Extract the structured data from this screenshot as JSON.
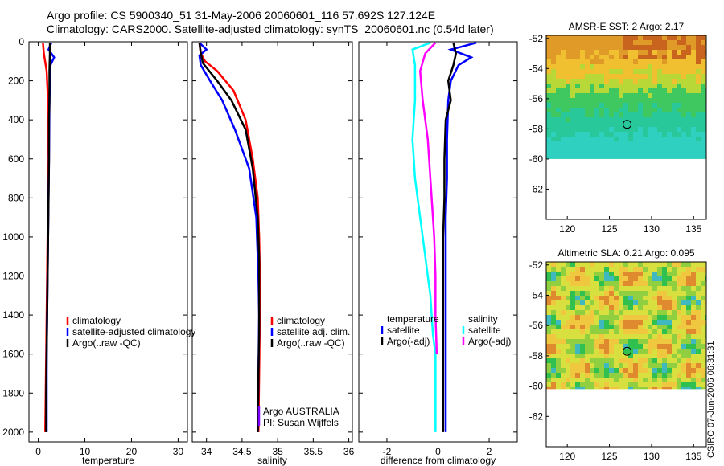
{
  "header": {
    "title_line1": "Argo profile: CS 5900340_51 31-May-2006 20060601_116 57.692S 127.124E",
    "title_line2": "Climatology: CARS2000. Satellite-adjusted climatology: synTS_20060601.nc (0.54d later)"
  },
  "stamp": "CSIRO 07-Jun-2006 06:31:31",
  "colors": {
    "red": "#ff0000",
    "blue": "#0000ff",
    "black": "#000000",
    "cyan": "#00ffff",
    "magenta": "#ff00ff"
  },
  "chart_data": [
    {
      "id": "temperature",
      "type": "line",
      "xlabel": "temperature",
      "ylabel": "",
      "xlim": [
        -2,
        32
      ],
      "ylim": [
        2050,
        0
      ],
      "xticks": [
        0,
        10,
        20,
        30
      ],
      "yticks": [
        0,
        200,
        400,
        600,
        800,
        1000,
        1200,
        1400,
        1600,
        1800,
        2000
      ],
      "legend": [
        "climatology",
        "satellite-adjusted climatology",
        "Argo(..raw -QC)"
      ],
      "series": [
        {
          "name": "climatology",
          "color": "red",
          "x": [
            1.0,
            1.2,
            1.8,
            2.0,
            2.1,
            2.2,
            2.1,
            2.0,
            1.9,
            1.8,
            1.7,
            1.6,
            1.5
          ],
          "y": [
            5,
            60,
            150,
            250,
            400,
            600,
            800,
            1000,
            1200,
            1400,
            1600,
            1800,
            2000
          ]
        },
        {
          "name": "satellite-adjusted climatology",
          "color": "blue",
          "x": [
            2.8,
            2.2,
            3.4,
            2.6,
            2.4,
            2.3,
            2.2,
            2.1,
            2.0,
            1.9,
            1.8,
            1.8,
            1.8
          ],
          "y": [
            5,
            40,
            80,
            120,
            300,
            600,
            800,
            1000,
            1200,
            1400,
            1600,
            1800,
            2000
          ]
        },
        {
          "name": "Argo(..raw -QC)",
          "color": "black",
          "x": [
            2.5,
            2.5,
            2.4,
            2.4,
            2.3,
            2.3,
            2.2,
            2.1,
            2.0,
            1.9,
            1.8,
            1.7,
            1.7
          ],
          "y": [
            5,
            60,
            150,
            300,
            400,
            600,
            800,
            1000,
            1200,
            1400,
            1600,
            1800,
            2000
          ]
        }
      ]
    },
    {
      "id": "salinity",
      "type": "line",
      "xlabel": "salinity",
      "ylabel": "",
      "xlim": [
        33.8,
        36.05
      ],
      "ylim": [
        2050,
        0
      ],
      "xticks": [
        34,
        34.5,
        35,
        35.5,
        36
      ],
      "legend": [
        "climatology",
        "satellite adj. clim.",
        "Argo(..raw -QC)"
      ],
      "annotation": [
        "Argo AUSTRALIA",
        "PI: Susan Wijffels"
      ],
      "series": [
        {
          "name": "climatology",
          "color": "red",
          "x": [
            33.9,
            33.92,
            33.98,
            34.15,
            34.38,
            34.55,
            34.65,
            34.72,
            34.74,
            34.75,
            34.75,
            34.74,
            34.73
          ],
          "y": [
            5,
            60,
            100,
            150,
            250,
            400,
            600,
            800,
            1000,
            1200,
            1400,
            1700,
            2000
          ]
        },
        {
          "name": "satellite adj. clim.",
          "color": "blue",
          "x": [
            33.9,
            34.0,
            33.9,
            33.92,
            34.05,
            34.22,
            34.4,
            34.6,
            34.7,
            34.73,
            34.74,
            34.73,
            34.72
          ],
          "y": [
            5,
            40,
            70,
            120,
            200,
            300,
            450,
            650,
            900,
            1200,
            1400,
            1700,
            2000
          ]
        },
        {
          "name": "Argo(..raw -QC)",
          "color": "black",
          "x": [
            33.9,
            33.92,
            33.95,
            34.15,
            34.35,
            34.55,
            34.65,
            34.72,
            34.74,
            34.74,
            34.74,
            34.73,
            34.72
          ],
          "y": [
            5,
            60,
            110,
            200,
            300,
            450,
            650,
            900,
            1100,
            1300,
            1500,
            1700,
            2000
          ]
        }
      ]
    },
    {
      "id": "difference",
      "type": "line",
      "xlabel": "difference from climatology",
      "ylabel": "",
      "xlim": [
        -3.1,
        3.1
      ],
      "ylim": [
        2050,
        0
      ],
      "xticks": [
        -2,
        0,
        2
      ],
      "legend": [
        "temperature",
        "satellite",
        "Argo(-adj)",
        "salinity",
        "satellite",
        "Argo(-adj)"
      ],
      "series": [
        {
          "name": "temperature satellite",
          "color": "blue",
          "x": [
            1.5,
            0.5,
            1.3,
            0.8,
            0.5,
            0.4,
            0.35,
            0.35,
            0.3,
            0.3,
            0.3,
            0.3,
            0.3,
            0.3
          ],
          "y": [
            5,
            40,
            80,
            120,
            200,
            300,
            500,
            700,
            900,
            1100,
            1300,
            1500,
            1700,
            2000
          ]
        },
        {
          "name": "temperature Argo(-adj)",
          "color": "black",
          "x": [
            0.6,
            0.7,
            0.6,
            0.4,
            0.5,
            0.3,
            0.25,
            0.25,
            0.2,
            0.2,
            0.2,
            0.2,
            0.2,
            0.2
          ],
          "y": [
            5,
            60,
            120,
            200,
            300,
            400,
            600,
            800,
            1000,
            1200,
            1400,
            1600,
            1800,
            2000
          ]
        },
        {
          "name": "salinity satellite",
          "color": "cyan",
          "x": [
            -0.3,
            -1.0,
            -0.9,
            -0.9,
            -1.0,
            -0.9,
            -0.7,
            -0.5,
            -0.3,
            -0.2,
            -0.1,
            -0.1,
            -0.1,
            -0.1
          ],
          "y": [
            5,
            40,
            120,
            300,
            500,
            700,
            900,
            1100,
            1300,
            1500,
            1600,
            1700,
            1850,
            2000
          ]
        },
        {
          "name": "salinity Argo(-adj)",
          "color": "magenta",
          "x": [
            -0.1,
            -0.5,
            -0.7,
            -0.6,
            -0.4,
            -0.3,
            -0.2,
            -0.15,
            -0.1,
            -0.1,
            -0.05
          ],
          "y": [
            5,
            60,
            150,
            300,
            500,
            700,
            900,
            1000,
            1200,
            1400,
            1600
          ]
        }
      ]
    },
    {
      "id": "sst_map",
      "type": "heatmap",
      "title": "AMSR-E SST: 2 Argo: 2.17",
      "xlim": [
        117.5,
        136.5
      ],
      "ylim": [
        -64,
        -51.8
      ],
      "xticks": [
        120,
        125,
        130,
        135
      ],
      "yticks": [
        -52,
        -54,
        -56,
        -58,
        -60,
        -62
      ],
      "data_extent_lat": [
        -60,
        -51.8
      ],
      "marker": {
        "lon": 127.1,
        "lat": -57.7
      }
    },
    {
      "id": "sla_map",
      "type": "heatmap",
      "title": "Altimetric SLA: 0.21 Argo: 0.095",
      "xlim": [
        117.5,
        136.5
      ],
      "ylim": [
        -64,
        -51.8
      ],
      "xticks": [
        120,
        125,
        130,
        135
      ],
      "yticks": [
        -52,
        -54,
        -56,
        -58,
        -60,
        -62
      ],
      "data_extent_lat": [
        -60.2,
        -51.8
      ],
      "marker": {
        "lon": 127.1,
        "lat": -57.7
      }
    }
  ]
}
